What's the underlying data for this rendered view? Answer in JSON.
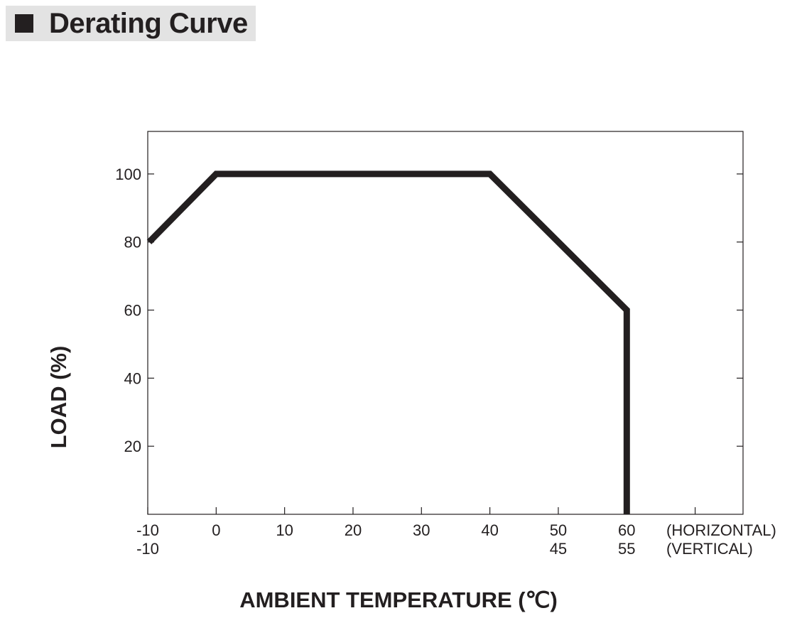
{
  "header": {
    "title": "Derating Curve"
  },
  "chart_data": {
    "type": "line",
    "title": "",
    "xlabel": "AMBIENT TEMPERATURE (℃)",
    "ylabel": "LOAD (%)",
    "xlim": [
      -10,
      77
    ],
    "ylim": [
      0,
      112.5
    ],
    "grid": false,
    "x_ticks": [
      -10,
      0,
      10,
      20,
      30,
      40,
      50,
      60,
      70
    ],
    "y_ticks": [
      20,
      40,
      60,
      80,
      100
    ],
    "x_tick_labels_horizontal": [
      "-10",
      "0",
      "10",
      "20",
      "30",
      "40",
      "50",
      "60",
      ""
    ],
    "x_tick_labels_vertical": [
      "-10",
      "",
      "",
      "",
      "",
      "",
      "45",
      "55",
      ""
    ],
    "y_tick_labels": [
      "20",
      "40",
      "60",
      "80",
      "100"
    ],
    "row_labels": {
      "horizontal": "(HORIZONTAL)",
      "vertical": "(VERTICAL)"
    },
    "series": [
      {
        "x": [
          -10,
          0,
          40,
          60,
          60
        ],
        "y": [
          80,
          100,
          100,
          60,
          0
        ]
      }
    ],
    "line_color": "#231f20"
  }
}
